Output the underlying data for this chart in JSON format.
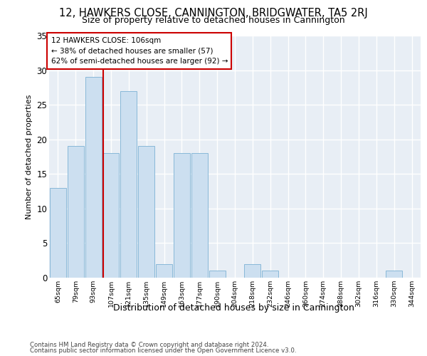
{
  "title1": "12, HAWKERS CLOSE, CANNINGTON, BRIDGWATER, TA5 2RJ",
  "title2": "Size of property relative to detached houses in Cannington",
  "xlabel": "Distribution of detached houses by size in Cannington",
  "ylabel": "Number of detached properties",
  "categories": [
    "65sqm",
    "79sqm",
    "93sqm",
    "107sqm",
    "121sqm",
    "135sqm",
    "149sqm",
    "163sqm",
    "177sqm",
    "190sqm",
    "204sqm",
    "218sqm",
    "232sqm",
    "246sqm",
    "260sqm",
    "274sqm",
    "288sqm",
    "302sqm",
    "316sqm",
    "330sqm",
    "344sqm"
  ],
  "values": [
    13,
    19,
    29,
    18,
    27,
    19,
    2,
    18,
    18,
    1,
    0,
    2,
    1,
    0,
    0,
    0,
    0,
    0,
    0,
    1,
    0
  ],
  "bar_color": "#ccdff0",
  "bar_edge_color": "#88b8d8",
  "vline_color": "#cc0000",
  "vline_x": 2.55,
  "annotation_lines": [
    "12 HAWKERS CLOSE: 106sqm",
    "← 38% of detached houses are smaller (57)",
    "62% of semi-detached houses are larger (92) →"
  ],
  "annotation_box_edgecolor": "#cc0000",
  "ylim": [
    0,
    35
  ],
  "yticks": [
    0,
    5,
    10,
    15,
    20,
    25,
    30,
    35
  ],
  "plot_bg_color": "#e8eef5",
  "grid_color": "white",
  "footer1": "Contains HM Land Registry data © Crown copyright and database right 2024.",
  "footer2": "Contains public sector information licensed under the Open Government Licence v3.0."
}
